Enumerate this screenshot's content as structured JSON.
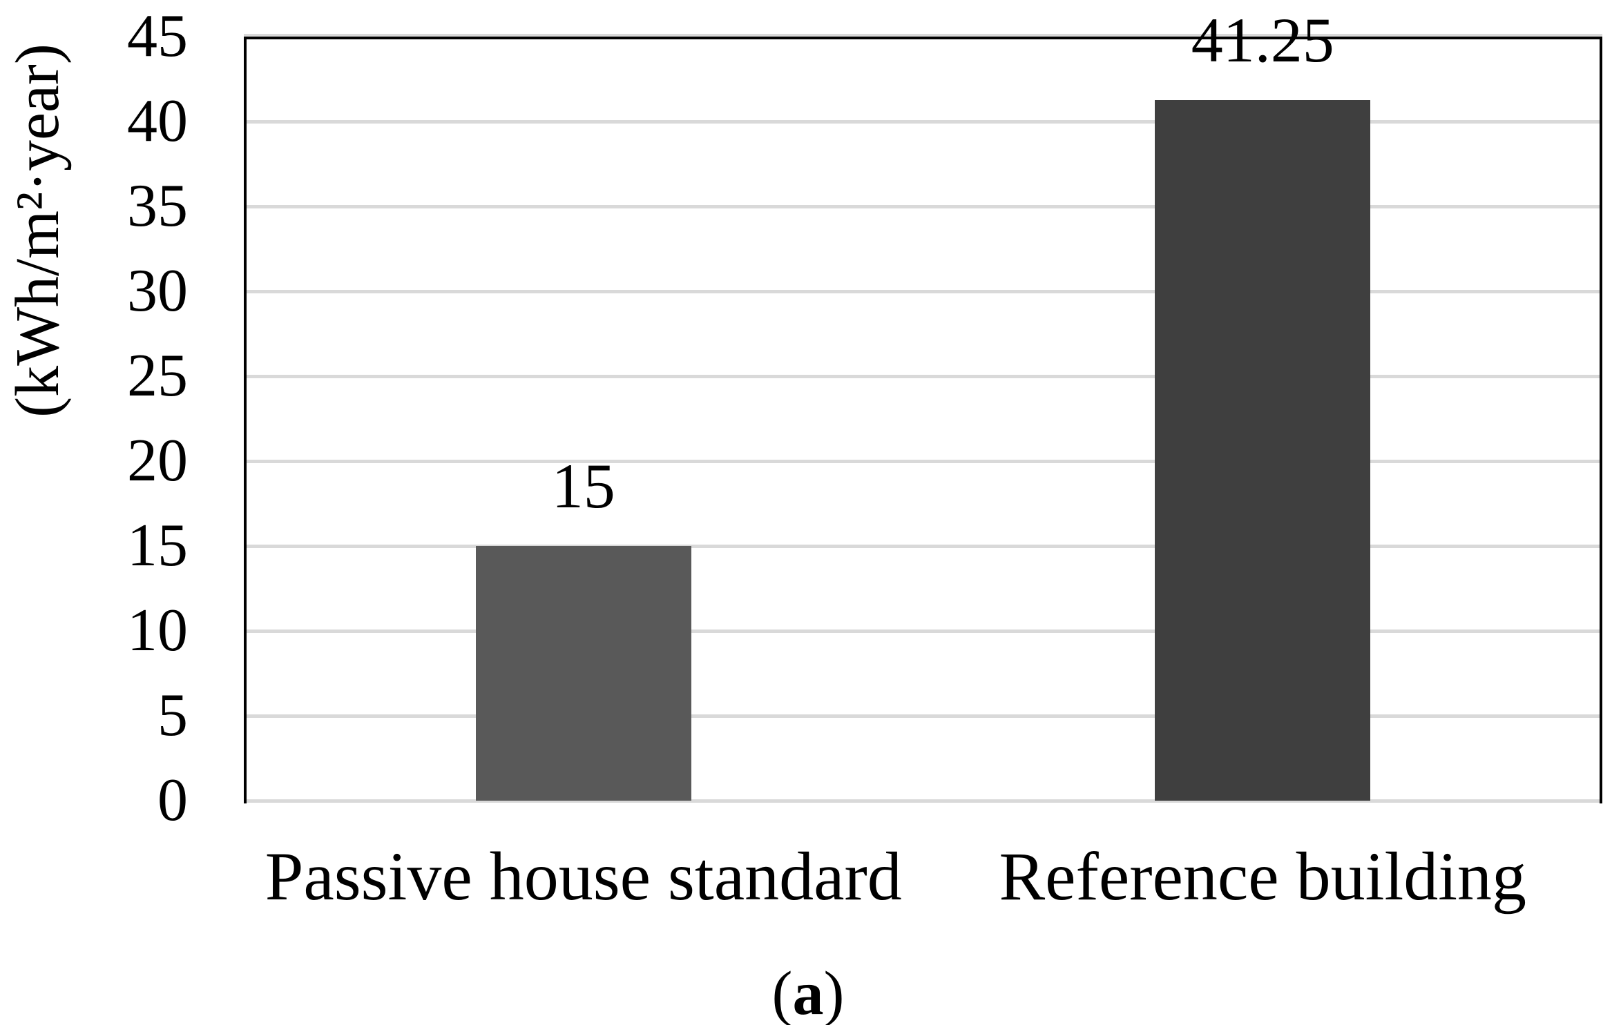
{
  "figure": {
    "caption_prefix": "(",
    "caption_letter": "a",
    "caption_suffix": ")"
  },
  "chart_data": {
    "type": "bar",
    "title": "",
    "xlabel": "",
    "ylabel": "(kWh/m²·year)",
    "categories": [
      "Passive house standard",
      "Reference building"
    ],
    "values": [
      15,
      41.25
    ],
    "data_labels": [
      "15",
      "41.25"
    ],
    "ylim": [
      0,
      45
    ],
    "ytick_step": 5,
    "yticks": [
      0,
      5,
      10,
      15,
      20,
      25,
      30,
      35,
      40,
      45
    ],
    "grid": true,
    "legend": null,
    "bar_colors": [
      "#595959",
      "#3F3F3F"
    ],
    "gridline_color": "#D9D9D9",
    "frame_color": "#000000",
    "text_color": "#000000"
  }
}
